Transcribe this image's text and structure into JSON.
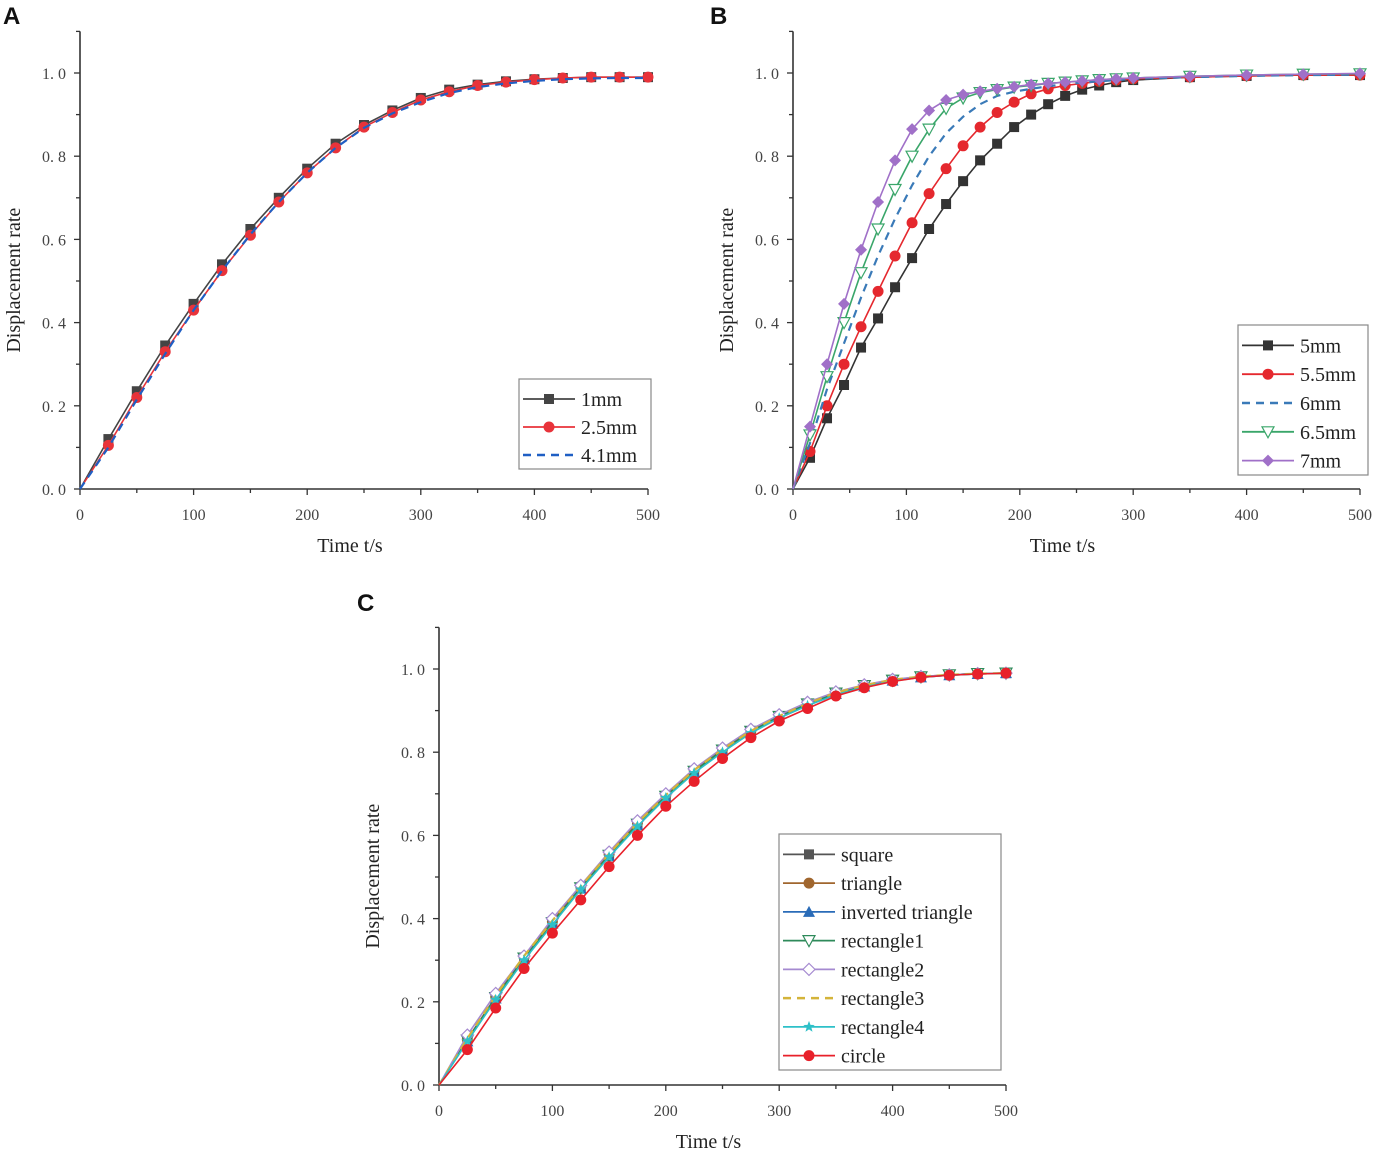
{
  "chart_data": [
    {
      "panel": "A",
      "type": "line",
      "xlabel": "Time t/s",
      "ylabel": "Displacement rate",
      "xlim": [
        0,
        500
      ],
      "ylim": [
        0,
        1.1
      ],
      "xticks": [
        "0",
        "100",
        "200",
        "300",
        "400",
        "500"
      ],
      "yticks": [
        "0. 0",
        "0. 2",
        "0. 4",
        "0. 6",
        "0. 8",
        "1. 0"
      ],
      "legend_position": "bottom-right",
      "x": [
        0,
        25,
        50,
        75,
        100,
        125,
        150,
        175,
        200,
        225,
        250,
        275,
        300,
        325,
        350,
        375,
        400,
        425,
        450,
        475,
        500
      ],
      "series": [
        {
          "name": "1mm",
          "color": "#444444",
          "marker": "square",
          "dash": false,
          "values": [
            0,
            0.12,
            0.235,
            0.345,
            0.445,
            0.54,
            0.625,
            0.7,
            0.77,
            0.83,
            0.875,
            0.91,
            0.94,
            0.96,
            0.972,
            0.98,
            0.985,
            0.988,
            0.99,
            0.99,
            0.99
          ]
        },
        {
          "name": "2.5mm",
          "color": "#e8333a",
          "marker": "circle",
          "dash": false,
          "values": [
            0,
            0.105,
            0.22,
            0.33,
            0.43,
            0.525,
            0.61,
            0.69,
            0.76,
            0.82,
            0.87,
            0.905,
            0.935,
            0.955,
            0.97,
            0.978,
            0.984,
            0.988,
            0.99,
            0.99,
            0.99
          ]
        },
        {
          "name": "4.1mm",
          "color": "#1f5fc4",
          "marker": "none",
          "dash": true,
          "values": [
            0,
            0.1,
            0.215,
            0.325,
            0.43,
            0.525,
            0.612,
            0.69,
            0.76,
            0.82,
            0.868,
            0.903,
            0.93,
            0.952,
            0.966,
            0.975,
            0.981,
            0.985,
            0.987,
            0.988,
            0.988
          ]
        }
      ]
    },
    {
      "panel": "B",
      "type": "line",
      "xlabel": "Time t/s",
      "ylabel": "Displacement rate",
      "xlim": [
        0,
        500
      ],
      "ylim": [
        0,
        1.1
      ],
      "xticks": [
        "0",
        "100",
        "200",
        "300",
        "400",
        "500"
      ],
      "yticks": [
        "0. 0",
        "0. 2",
        "0. 4",
        "0. 6",
        "0. 8",
        "1. 0"
      ],
      "legend_position": "bottom-right",
      "x": [
        0,
        15,
        30,
        45,
        60,
        75,
        90,
        105,
        120,
        135,
        150,
        165,
        180,
        195,
        210,
        225,
        240,
        255,
        270,
        285,
        300,
        350,
        400,
        450,
        500
      ],
      "series": [
        {
          "name": "5mm",
          "color": "#333333",
          "marker": "square",
          "dash": false,
          "values": [
            0,
            0.075,
            0.17,
            0.25,
            0.34,
            0.41,
            0.485,
            0.555,
            0.625,
            0.685,
            0.74,
            0.79,
            0.83,
            0.87,
            0.9,
            0.925,
            0.945,
            0.96,
            0.97,
            0.978,
            0.983,
            0.99,
            0.993,
            0.995,
            0.995
          ]
        },
        {
          "name": "5.5mm",
          "color": "#e5282e",
          "marker": "circle",
          "dash": false,
          "values": [
            0,
            0.09,
            0.2,
            0.3,
            0.39,
            0.475,
            0.56,
            0.64,
            0.71,
            0.77,
            0.825,
            0.87,
            0.905,
            0.93,
            0.95,
            0.962,
            0.97,
            0.975,
            0.98,
            0.983,
            0.986,
            0.99,
            0.993,
            0.995,
            0.995
          ]
        },
        {
          "name": "6mm",
          "color": "#3a7ab8",
          "marker": "none",
          "dash": true,
          "values": [
            0,
            0.11,
            0.24,
            0.35,
            0.46,
            0.56,
            0.65,
            0.73,
            0.8,
            0.855,
            0.895,
            0.925,
            0.945,
            0.955,
            0.962,
            0.968,
            0.973,
            0.977,
            0.98,
            0.983,
            0.986,
            0.99,
            0.993,
            0.995,
            0.996
          ]
        },
        {
          "name": "6.5mm",
          "color": "#3aa66a",
          "marker": "tri-down-open",
          "dash": false,
          "values": [
            0,
            0.13,
            0.27,
            0.4,
            0.52,
            0.625,
            0.72,
            0.8,
            0.865,
            0.915,
            0.94,
            0.953,
            0.96,
            0.966,
            0.97,
            0.975,
            0.978,
            0.981,
            0.984,
            0.986,
            0.988,
            0.992,
            0.995,
            0.997,
            0.998
          ]
        },
        {
          "name": "7mm",
          "color": "#a070c8",
          "marker": "diamond",
          "dash": false,
          "values": [
            0,
            0.15,
            0.3,
            0.445,
            0.575,
            0.69,
            0.79,
            0.865,
            0.91,
            0.935,
            0.948,
            0.956,
            0.962,
            0.967,
            0.972,
            0.975,
            0.978,
            0.981,
            0.984,
            0.986,
            0.988,
            0.992,
            0.995,
            0.997,
            0.999
          ]
        }
      ]
    },
    {
      "panel": "C",
      "type": "line",
      "xlabel": "Time t/s",
      "ylabel": "Displacement rate",
      "xlim": [
        0,
        500
      ],
      "ylim": [
        0,
        1.1
      ],
      "xticks": [
        "0",
        "100",
        "200",
        "300",
        "400",
        "500"
      ],
      "yticks": [
        "0. 0",
        "0. 2",
        "0. 4",
        "0. 6",
        "0. 8",
        "1. 0"
      ],
      "legend_position": "bottom-right",
      "x": [
        0,
        25,
        50,
        75,
        100,
        125,
        150,
        175,
        200,
        225,
        250,
        275,
        300,
        325,
        350,
        375,
        400,
        425,
        450,
        475,
        500
      ],
      "series": [
        {
          "name": "square",
          "color": "#555555",
          "marker": "square",
          "dash": false,
          "values": [
            0,
            0.11,
            0.21,
            0.305,
            0.39,
            0.475,
            0.552,
            0.628,
            0.695,
            0.755,
            0.805,
            0.85,
            0.886,
            0.916,
            0.942,
            0.96,
            0.973,
            0.981,
            0.986,
            0.989,
            0.99
          ]
        },
        {
          "name": "triangle",
          "color": "#a0662e",
          "marker": "circle",
          "dash": false,
          "values": [
            0,
            0.11,
            0.212,
            0.308,
            0.393,
            0.478,
            0.555,
            0.63,
            0.697,
            0.757,
            0.807,
            0.851,
            0.887,
            0.917,
            0.943,
            0.961,
            0.974,
            0.982,
            0.986,
            0.989,
            0.99
          ]
        },
        {
          "name": "inverted triangle",
          "color": "#2a6cb8",
          "marker": "tri-up",
          "dash": false,
          "values": [
            0,
            0.105,
            0.208,
            0.302,
            0.388,
            0.472,
            0.55,
            0.625,
            0.692,
            0.752,
            0.803,
            0.848,
            0.884,
            0.914,
            0.94,
            0.958,
            0.972,
            0.98,
            0.985,
            0.988,
            0.99
          ]
        },
        {
          "name": "rectangle1",
          "color": "#2e8a5a",
          "marker": "tri-down-open",
          "dash": false,
          "values": [
            0,
            0.108,
            0.21,
            0.305,
            0.39,
            0.474,
            0.552,
            0.627,
            0.694,
            0.754,
            0.805,
            0.85,
            0.886,
            0.916,
            0.942,
            0.96,
            0.973,
            0.981,
            0.986,
            0.989,
            0.99
          ]
        },
        {
          "name": "rectangle2",
          "color": "#a58ad0",
          "marker": "diamond-open",
          "dash": false,
          "values": [
            0,
            0.12,
            0.22,
            0.31,
            0.4,
            0.48,
            0.56,
            0.635,
            0.7,
            0.76,
            0.81,
            0.855,
            0.89,
            0.92,
            0.945,
            0.962,
            0.975,
            0.982,
            0.986,
            0.989,
            0.99
          ]
        },
        {
          "name": "rectangle3",
          "color": "#d4b43a",
          "marker": "none",
          "dash": true,
          "values": [
            0,
            0.112,
            0.215,
            0.31,
            0.395,
            0.478,
            0.556,
            0.63,
            0.697,
            0.757,
            0.807,
            0.851,
            0.887,
            0.917,
            0.943,
            0.961,
            0.974,
            0.982,
            0.986,
            0.989,
            0.99
          ]
        },
        {
          "name": "rectangle4",
          "color": "#2ec0c8",
          "marker": "star",
          "dash": false,
          "values": [
            0,
            0.105,
            0.205,
            0.3,
            0.385,
            0.47,
            0.548,
            0.622,
            0.69,
            0.75,
            0.8,
            0.846,
            0.882,
            0.912,
            0.938,
            0.957,
            0.971,
            0.98,
            0.985,
            0.988,
            0.99
          ]
        },
        {
          "name": "circle",
          "color": "#e8202a",
          "marker": "circle",
          "dash": false,
          "values": [
            0,
            0.085,
            0.185,
            0.28,
            0.365,
            0.445,
            0.525,
            0.6,
            0.67,
            0.73,
            0.785,
            0.835,
            0.875,
            0.905,
            0.935,
            0.955,
            0.97,
            0.98,
            0.985,
            0.988,
            0.99
          ]
        }
      ]
    }
  ]
}
